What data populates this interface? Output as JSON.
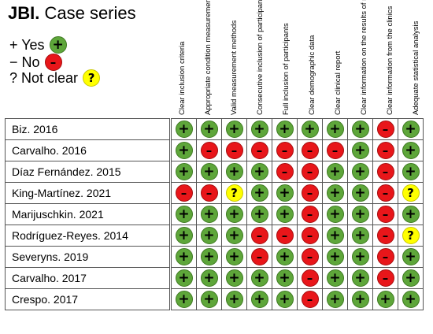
{
  "title": {
    "bold": "JBI.",
    "rest": " Case series"
  },
  "legend": {
    "yes": {
      "label": "+ Yes",
      "symbol": "+"
    },
    "no": {
      "label": "−  No",
      "symbol": "–"
    },
    "not_clear": {
      "label": "? Not clear",
      "symbol": "?"
    }
  },
  "colors": {
    "yes": "#5ea63a",
    "no": "#e8161a",
    "not_clear": "#ffff00"
  },
  "criteria": [
    "Clear inclusion criteria",
    "Appropriate condition measurement",
    "Valid measurement methods",
    "Consecutive inclusion of participants",
    "Full inclusion of participants",
    "Clear demographic data",
    "Clear clinical report",
    "Clear information on the results of monitoring",
    "Clear information from the clinics",
    "Adequate statistical analysis"
  ],
  "studies": [
    {
      "name": "Biz. 2016",
      "ratings": [
        "yes",
        "yes",
        "yes",
        "yes",
        "yes",
        "yes",
        "yes",
        "yes",
        "no",
        "yes"
      ]
    },
    {
      "name": "Carvalho. 2016",
      "ratings": [
        "yes",
        "no",
        "no",
        "no",
        "no",
        "no",
        "no",
        "yes",
        "no",
        "yes"
      ]
    },
    {
      "name": "Díaz Fernández. 2015",
      "ratings": [
        "yes",
        "yes",
        "yes",
        "yes",
        "no",
        "no",
        "yes",
        "yes",
        "no",
        "yes"
      ]
    },
    {
      "name": "King-Martínez. 2021",
      "ratings": [
        "no",
        "no",
        "nc",
        "yes",
        "yes",
        "no",
        "yes",
        "yes",
        "no",
        "nc"
      ]
    },
    {
      "name": "Marijuschkin. 2021",
      "ratings": [
        "yes",
        "yes",
        "yes",
        "yes",
        "yes",
        "no",
        "yes",
        "yes",
        "no",
        "yes"
      ]
    },
    {
      "name": "Rodríguez-Reyes. 2014",
      "ratings": [
        "yes",
        "yes",
        "yes",
        "no",
        "no",
        "no",
        "yes",
        "yes",
        "no",
        "nc"
      ]
    },
    {
      "name": "Severyns. 2019",
      "ratings": [
        "yes",
        "yes",
        "yes",
        "no",
        "yes",
        "no",
        "yes",
        "yes",
        "no",
        "yes"
      ]
    },
    {
      "name": "Carvalho. 2017",
      "ratings": [
        "yes",
        "yes",
        "yes",
        "yes",
        "yes",
        "no",
        "yes",
        "yes",
        "no",
        "yes"
      ]
    },
    {
      "name": "Crespo. 2017",
      "ratings": [
        "yes",
        "yes",
        "yes",
        "yes",
        "yes",
        "no",
        "yes",
        "yes",
        "yes",
        "yes"
      ]
    }
  ]
}
